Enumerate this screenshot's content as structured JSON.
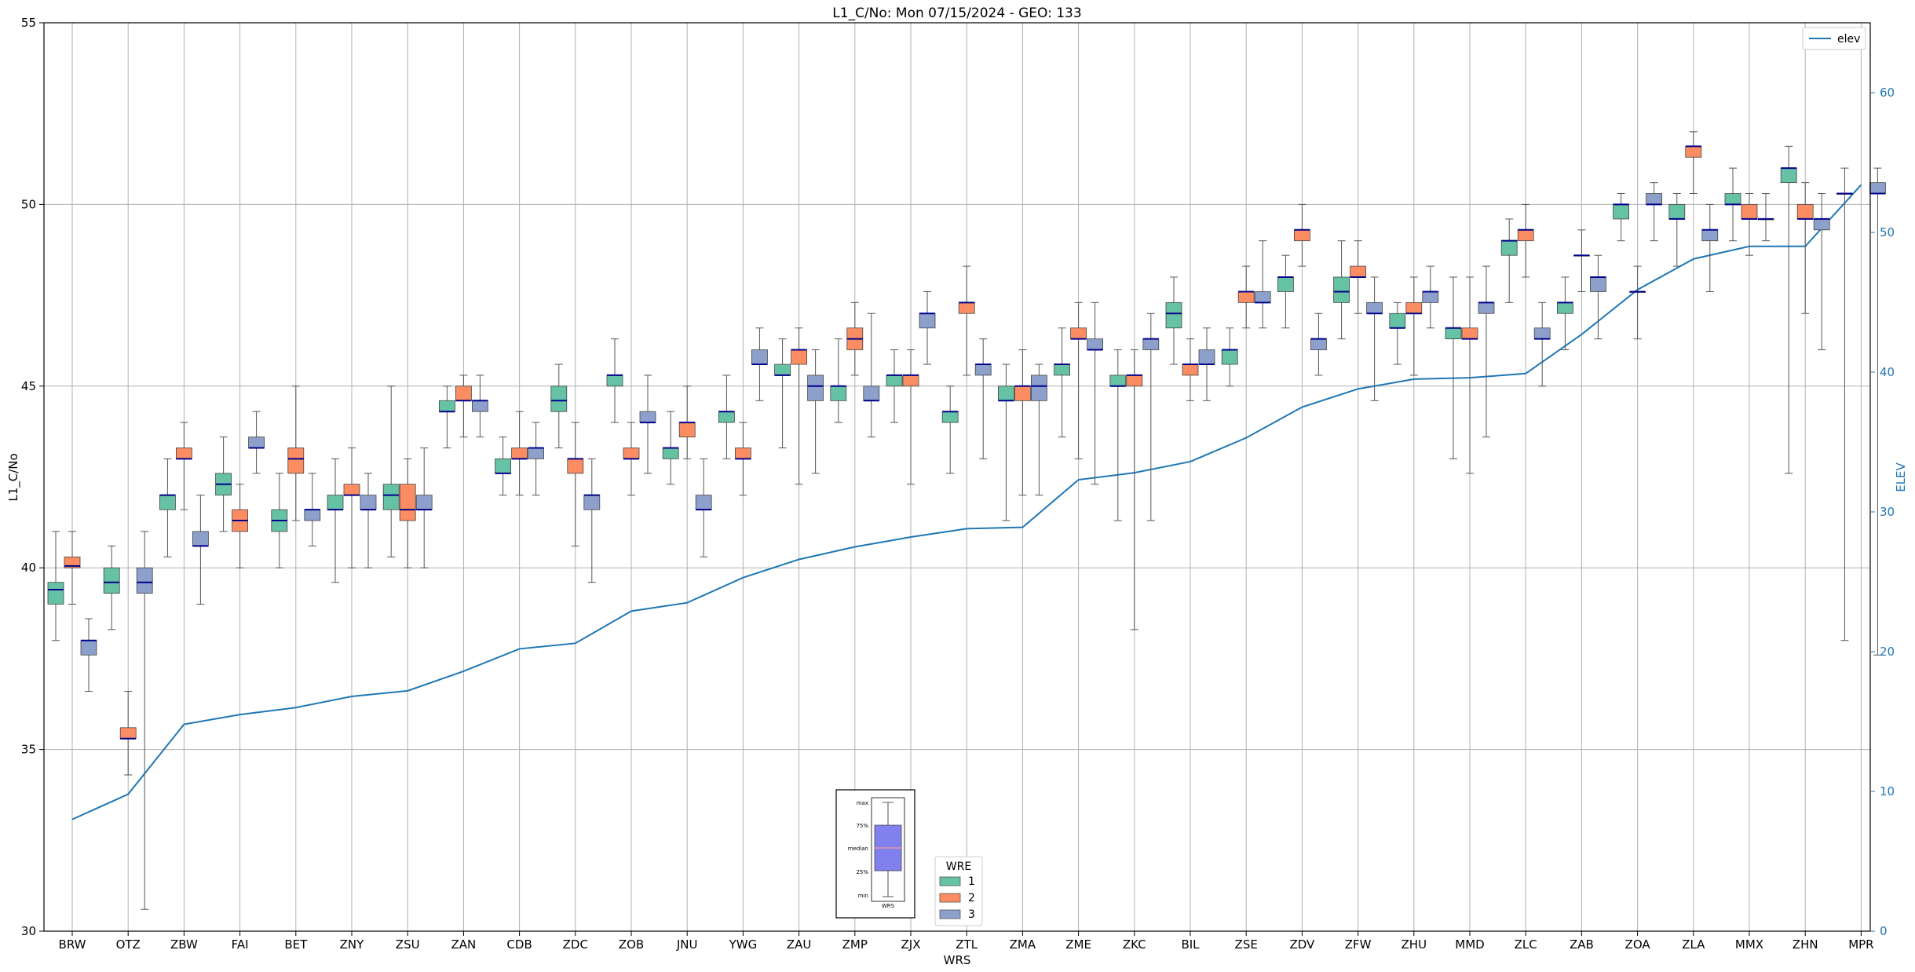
{
  "chart_data": {
    "type": "box",
    "title": "L1_C/No: Mon 07/15/2024 - GEO: 133",
    "xlabel": "WRS",
    "ylabel": "L1_C/No",
    "y2label": "ELEV",
    "ylim": [
      30,
      55
    ],
    "y2lim": [
      0,
      65
    ],
    "yticks": [
      30,
      35,
      40,
      45,
      50,
      55
    ],
    "y2ticks": [
      0,
      10,
      20,
      30,
      40,
      50,
      60
    ],
    "grid": true,
    "categories": [
      "BRW",
      "OTZ",
      "ZBW",
      "FAI",
      "BET",
      "ZNY",
      "ZSU",
      "ZAN",
      "CDB",
      "ZDC",
      "ZOB",
      "JNU",
      "YWG",
      "ZAU",
      "ZMP",
      "ZJX",
      "ZTL",
      "ZMA",
      "ZME",
      "ZKC",
      "BIL",
      "ZSE",
      "ZDV",
      "ZFW",
      "ZHU",
      "MMD",
      "ZLC",
      "ZAB",
      "ZOA",
      "ZLA",
      "MMX",
      "ZHN",
      "MPR"
    ],
    "wre_colors": {
      "1": "#66c2a5",
      "2": "#fc8d62",
      "3": "#8da0cb"
    },
    "median_color": "#00008b",
    "elev_color": "#1f77b4",
    "boxes": [
      {
        "cat": "BRW",
        "wre": 1,
        "min": 38.0,
        "q1": 39.0,
        "median": 39.4,
        "q3": 39.6,
        "max": 41.0
      },
      {
        "cat": "BRW",
        "wre": 2,
        "min": 39.0,
        "q1": 40.0,
        "median": 40.05,
        "q3": 40.3,
        "max": 41.0
      },
      {
        "cat": "BRW",
        "wre": 3,
        "min": 36.6,
        "q1": 37.6,
        "median": 38.0,
        "q3": 38.0,
        "max": 38.6
      },
      {
        "cat": "OTZ",
        "wre": 1,
        "min": 38.3,
        "q1": 39.3,
        "median": 39.6,
        "q3": 40.0,
        "max": 40.6
      },
      {
        "cat": "OTZ",
        "wre": 2,
        "min": 34.3,
        "q1": 35.3,
        "median": 35.3,
        "q3": 35.6,
        "max": 36.6
      },
      {
        "cat": "OTZ",
        "wre": 3,
        "min": 30.6,
        "q1": 39.3,
        "median": 39.6,
        "q3": 40.0,
        "max": 41.0
      },
      {
        "cat": "ZBW",
        "wre": 1,
        "min": 40.3,
        "q1": 41.6,
        "median": 42.0,
        "q3": 42.0,
        "max": 43.0
      },
      {
        "cat": "ZBW",
        "wre": 2,
        "min": 41.6,
        "q1": 43.0,
        "median": 43.0,
        "q3": 43.3,
        "max": 44.0
      },
      {
        "cat": "ZBW",
        "wre": 3,
        "min": 39.0,
        "q1": 40.6,
        "median": 40.6,
        "q3": 41.0,
        "max": 42.0
      },
      {
        "cat": "FAI",
        "wre": 1,
        "min": 41.0,
        "q1": 42.0,
        "median": 42.3,
        "q3": 42.6,
        "max": 43.6
      },
      {
        "cat": "FAI",
        "wre": 2,
        "min": 40.0,
        "q1": 41.0,
        "median": 41.3,
        "q3": 41.6,
        "max": 42.3
      },
      {
        "cat": "FAI",
        "wre": 3,
        "min": 42.6,
        "q1": 43.3,
        "median": 43.3,
        "q3": 43.6,
        "max": 44.3
      },
      {
        "cat": "BET",
        "wre": 1,
        "min": 40.0,
        "q1": 41.0,
        "median": 41.3,
        "q3": 41.6,
        "max": 42.6
      },
      {
        "cat": "BET",
        "wre": 2,
        "min": 41.3,
        "q1": 42.6,
        "median": 43.0,
        "q3": 43.3,
        "max": 45.0
      },
      {
        "cat": "BET",
        "wre": 3,
        "min": 40.6,
        "q1": 41.3,
        "median": 41.6,
        "q3": 41.6,
        "max": 42.6
      },
      {
        "cat": "ZNY",
        "wre": 1,
        "min": 39.6,
        "q1": 41.6,
        "median": 41.6,
        "q3": 42.0,
        "max": 43.0
      },
      {
        "cat": "ZNY",
        "wre": 2,
        "min": 40.0,
        "q1": 42.0,
        "median": 42.0,
        "q3": 42.3,
        "max": 43.3
      },
      {
        "cat": "ZNY",
        "wre": 3,
        "min": 40.0,
        "q1": 41.6,
        "median": 41.6,
        "q3": 42.0,
        "max": 42.6
      },
      {
        "cat": "ZSU",
        "wre": 1,
        "min": 40.3,
        "q1": 41.6,
        "median": 42.0,
        "q3": 42.3,
        "max": 45.0
      },
      {
        "cat": "ZSU",
        "wre": 2,
        "min": 40.0,
        "q1": 41.3,
        "median": 41.6,
        "q3": 42.3,
        "max": 43.0
      },
      {
        "cat": "ZSU",
        "wre": 3,
        "min": 40.0,
        "q1": 41.6,
        "median": 41.6,
        "q3": 42.0,
        "max": 43.3
      },
      {
        "cat": "ZAN",
        "wre": 1,
        "min": 43.3,
        "q1": 44.3,
        "median": 44.3,
        "q3": 44.6,
        "max": 45.0
      },
      {
        "cat": "ZAN",
        "wre": 2,
        "min": 43.6,
        "q1": 44.6,
        "median": 44.6,
        "q3": 45.0,
        "max": 45.3
      },
      {
        "cat": "ZAN",
        "wre": 3,
        "min": 43.6,
        "q1": 44.3,
        "median": 44.6,
        "q3": 44.6,
        "max": 45.3
      },
      {
        "cat": "CDB",
        "wre": 1,
        "min": 42.0,
        "q1": 42.6,
        "median": 42.6,
        "q3": 43.0,
        "max": 43.6
      },
      {
        "cat": "CDB",
        "wre": 2,
        "min": 42.0,
        "q1": 43.0,
        "median": 43.0,
        "q3": 43.3,
        "max": 44.3
      },
      {
        "cat": "CDB",
        "wre": 3,
        "min": 42.0,
        "q1": 43.0,
        "median": 43.3,
        "q3": 43.3,
        "max": 44.0
      },
      {
        "cat": "ZDC",
        "wre": 1,
        "min": 43.3,
        "q1": 44.3,
        "median": 44.6,
        "q3": 45.0,
        "max": 45.6
      },
      {
        "cat": "ZDC",
        "wre": 2,
        "min": 40.6,
        "q1": 42.6,
        "median": 43.0,
        "q3": 43.0,
        "max": 44.0
      },
      {
        "cat": "ZDC",
        "wre": 3,
        "min": 39.6,
        "q1": 41.6,
        "median": 42.0,
        "q3": 42.0,
        "max": 43.0
      },
      {
        "cat": "ZOB",
        "wre": 1,
        "min": 44.0,
        "q1": 45.0,
        "median": 45.3,
        "q3": 45.3,
        "max": 46.3
      },
      {
        "cat": "ZOB",
        "wre": 2,
        "min": 42.0,
        "q1": 43.0,
        "median": 43.0,
        "q3": 43.3,
        "max": 44.0
      },
      {
        "cat": "ZOB",
        "wre": 3,
        "min": 42.6,
        "q1": 44.0,
        "median": 44.0,
        "q3": 44.3,
        "max": 45.3
      },
      {
        "cat": "JNU",
        "wre": 1,
        "min": 42.3,
        "q1": 43.0,
        "median": 43.3,
        "q3": 43.3,
        "max": 44.3
      },
      {
        "cat": "JNU",
        "wre": 2,
        "min": 43.0,
        "q1": 43.6,
        "median": 44.0,
        "q3": 44.0,
        "max": 45.0
      },
      {
        "cat": "JNU",
        "wre": 3,
        "min": 40.3,
        "q1": 41.6,
        "median": 41.6,
        "q3": 42.0,
        "max": 43.0
      },
      {
        "cat": "YWG",
        "wre": 1,
        "min": 43.0,
        "q1": 44.0,
        "median": 44.3,
        "q3": 44.3,
        "max": 45.3
      },
      {
        "cat": "YWG",
        "wre": 2,
        "min": 42.0,
        "q1": 43.0,
        "median": 43.0,
        "q3": 43.3,
        "max": 44.0
      },
      {
        "cat": "YWG",
        "wre": 3,
        "min": 44.6,
        "q1": 45.6,
        "median": 45.6,
        "q3": 46.0,
        "max": 46.6
      },
      {
        "cat": "ZAU",
        "wre": 1,
        "min": 43.3,
        "q1": 45.3,
        "median": 45.3,
        "q3": 45.6,
        "max": 46.3
      },
      {
        "cat": "ZAU",
        "wre": 2,
        "min": 42.3,
        "q1": 45.6,
        "median": 46.0,
        "q3": 46.0,
        "max": 46.6
      },
      {
        "cat": "ZAU",
        "wre": 3,
        "min": 42.6,
        "q1": 44.6,
        "median": 45.0,
        "q3": 45.3,
        "max": 46.0
      },
      {
        "cat": "ZMP",
        "wre": 1,
        "min": 44.0,
        "q1": 44.6,
        "median": 45.0,
        "q3": 45.0,
        "max": 46.3
      },
      {
        "cat": "ZMP",
        "wre": 2,
        "min": 45.3,
        "q1": 46.0,
        "median": 46.3,
        "q3": 46.6,
        "max": 47.3
      },
      {
        "cat": "ZMP",
        "wre": 3,
        "min": 43.6,
        "q1": 44.6,
        "median": 44.6,
        "q3": 45.0,
        "max": 47.0
      },
      {
        "cat": "ZJX",
        "wre": 1,
        "min": 44.0,
        "q1": 45.0,
        "median": 45.3,
        "q3": 45.3,
        "max": 46.0
      },
      {
        "cat": "ZJX",
        "wre": 2,
        "min": 42.3,
        "q1": 45.0,
        "median": 45.3,
        "q3": 45.3,
        "max": 46.0
      },
      {
        "cat": "ZJX",
        "wre": 3,
        "min": 45.6,
        "q1": 46.6,
        "median": 47.0,
        "q3": 47.0,
        "max": 47.6
      },
      {
        "cat": "ZTL",
        "wre": 1,
        "min": 42.6,
        "q1": 44.0,
        "median": 44.3,
        "q3": 44.3,
        "max": 45.0
      },
      {
        "cat": "ZTL",
        "wre": 2,
        "min": 45.3,
        "q1": 47.0,
        "median": 47.3,
        "q3": 47.3,
        "max": 48.3
      },
      {
        "cat": "ZTL",
        "wre": 3,
        "min": 43.0,
        "q1": 45.3,
        "median": 45.6,
        "q3": 45.6,
        "max": 46.3
      },
      {
        "cat": "ZMA",
        "wre": 1,
        "min": 41.3,
        "q1": 44.6,
        "median": 44.6,
        "q3": 45.0,
        "max": 45.6
      },
      {
        "cat": "ZMA",
        "wre": 2,
        "min": 42.0,
        "q1": 44.6,
        "median": 45.0,
        "q3": 45.0,
        "max": 46.0
      },
      {
        "cat": "ZMA",
        "wre": 3,
        "min": 42.0,
        "q1": 44.6,
        "median": 45.0,
        "q3": 45.3,
        "max": 45.6
      },
      {
        "cat": "ZME",
        "wre": 1,
        "min": 43.6,
        "q1": 45.3,
        "median": 45.6,
        "q3": 45.6,
        "max": 46.6
      },
      {
        "cat": "ZME",
        "wre": 2,
        "min": 43.0,
        "q1": 46.3,
        "median": 46.3,
        "q3": 46.6,
        "max": 47.3
      },
      {
        "cat": "ZME",
        "wre": 3,
        "min": 42.3,
        "q1": 46.0,
        "median": 46.0,
        "q3": 46.3,
        "max": 47.3
      },
      {
        "cat": "ZKC",
        "wre": 1,
        "min": 41.3,
        "q1": 45.0,
        "median": 45.0,
        "q3": 45.3,
        "max": 46.0
      },
      {
        "cat": "ZKC",
        "wre": 2,
        "min": 38.3,
        "q1": 45.0,
        "median": 45.3,
        "q3": 45.3,
        "max": 46.0
      },
      {
        "cat": "ZKC",
        "wre": 3,
        "min": 41.3,
        "q1": 46.0,
        "median": 46.3,
        "q3": 46.3,
        "max": 47.0
      },
      {
        "cat": "BIL",
        "wre": 1,
        "min": 45.6,
        "q1": 46.6,
        "median": 47.0,
        "q3": 47.3,
        "max": 48.0
      },
      {
        "cat": "BIL",
        "wre": 2,
        "min": 44.6,
        "q1": 45.3,
        "median": 45.6,
        "q3": 45.6,
        "max": 46.3
      },
      {
        "cat": "BIL",
        "wre": 3,
        "min": 44.6,
        "q1": 45.6,
        "median": 45.6,
        "q3": 46.0,
        "max": 46.6
      },
      {
        "cat": "ZSE",
        "wre": 1,
        "min": 45.0,
        "q1": 45.6,
        "median": 46.0,
        "q3": 46.0,
        "max": 46.6
      },
      {
        "cat": "ZSE",
        "wre": 2,
        "min": 46.6,
        "q1": 47.3,
        "median": 47.6,
        "q3": 47.6,
        "max": 48.3
      },
      {
        "cat": "ZSE",
        "wre": 3,
        "min": 46.6,
        "q1": 47.3,
        "median": 47.3,
        "q3": 47.6,
        "max": 49.0
      },
      {
        "cat": "ZDV",
        "wre": 1,
        "min": 46.6,
        "q1": 47.6,
        "median": 48.0,
        "q3": 48.0,
        "max": 48.6
      },
      {
        "cat": "ZDV",
        "wre": 2,
        "min": 48.3,
        "q1": 49.0,
        "median": 49.3,
        "q3": 49.3,
        "max": 50.0
      },
      {
        "cat": "ZDV",
        "wre": 3,
        "min": 45.3,
        "q1": 46.0,
        "median": 46.3,
        "q3": 46.3,
        "max": 47.0
      },
      {
        "cat": "ZFW",
        "wre": 1,
        "min": 46.3,
        "q1": 47.3,
        "median": 47.6,
        "q3": 48.0,
        "max": 49.0
      },
      {
        "cat": "ZFW",
        "wre": 2,
        "min": 47.0,
        "q1": 48.0,
        "median": 48.0,
        "q3": 48.3,
        "max": 49.0
      },
      {
        "cat": "ZFW",
        "wre": 3,
        "min": 44.6,
        "q1": 47.0,
        "median": 47.0,
        "q3": 47.3,
        "max": 48.0
      },
      {
        "cat": "ZHU",
        "wre": 1,
        "min": 45.6,
        "q1": 46.6,
        "median": 46.6,
        "q3": 47.0,
        "max": 47.3
      },
      {
        "cat": "ZHU",
        "wre": 2,
        "min": 45.3,
        "q1": 47.0,
        "median": 47.0,
        "q3": 47.3,
        "max": 48.0
      },
      {
        "cat": "ZHU",
        "wre": 3,
        "min": 46.6,
        "q1": 47.3,
        "median": 47.6,
        "q3": 47.6,
        "max": 48.3
      },
      {
        "cat": "MMD",
        "wre": 1,
        "min": 43.0,
        "q1": 46.3,
        "median": 46.6,
        "q3": 46.6,
        "max": 48.0
      },
      {
        "cat": "MMD",
        "wre": 2,
        "min": 42.6,
        "q1": 46.3,
        "median": 46.3,
        "q3": 46.6,
        "max": 48.0
      },
      {
        "cat": "MMD",
        "wre": 3,
        "min": 43.6,
        "q1": 47.0,
        "median": 47.3,
        "q3": 47.3,
        "max": 48.3
      },
      {
        "cat": "ZLC",
        "wre": 1,
        "min": 47.3,
        "q1": 48.6,
        "median": 49.0,
        "q3": 49.0,
        "max": 49.6
      },
      {
        "cat": "ZLC",
        "wre": 2,
        "min": 48.0,
        "q1": 49.0,
        "median": 49.3,
        "q3": 49.3,
        "max": 50.0
      },
      {
        "cat": "ZLC",
        "wre": 3,
        "min": 45.0,
        "q1": 46.3,
        "median": 46.3,
        "q3": 46.6,
        "max": 47.3
      },
      {
        "cat": "ZAB",
        "wre": 1,
        "min": 46.0,
        "q1": 47.0,
        "median": 47.3,
        "q3": 47.3,
        "max": 48.0
      },
      {
        "cat": "ZAB",
        "wre": 2,
        "min": 47.6,
        "q1": 48.6,
        "median": 48.6,
        "q3": 48.6,
        "max": 49.3
      },
      {
        "cat": "ZAB",
        "wre": 3,
        "min": 46.3,
        "q1": 47.6,
        "median": 48.0,
        "q3": 48.0,
        "max": 48.6
      },
      {
        "cat": "ZOA",
        "wre": 1,
        "min": 49.0,
        "q1": 49.6,
        "median": 50.0,
        "q3": 50.0,
        "max": 50.3
      },
      {
        "cat": "ZOA",
        "wre": 2,
        "min": 46.3,
        "q1": 47.6,
        "median": 47.6,
        "q3": 47.6,
        "max": 48.3
      },
      {
        "cat": "ZOA",
        "wre": 3,
        "min": 49.0,
        "q1": 50.0,
        "median": 50.0,
        "q3": 50.3,
        "max": 50.6
      },
      {
        "cat": "ZLA",
        "wre": 1,
        "min": 48.3,
        "q1": 49.6,
        "median": 49.6,
        "q3": 50.0,
        "max": 50.3
      },
      {
        "cat": "ZLA",
        "wre": 2,
        "min": 50.3,
        "q1": 51.3,
        "median": 51.6,
        "q3": 51.6,
        "max": 52.0
      },
      {
        "cat": "ZLA",
        "wre": 3,
        "min": 47.6,
        "q1": 49.0,
        "median": 49.3,
        "q3": 49.3,
        "max": 50.0
      },
      {
        "cat": "MMX",
        "wre": 1,
        "min": 49.0,
        "q1": 50.0,
        "median": 50.0,
        "q3": 50.3,
        "max": 51.0
      },
      {
        "cat": "MMX",
        "wre": 2,
        "min": 48.6,
        "q1": 49.6,
        "median": 49.6,
        "q3": 50.0,
        "max": 50.3
      },
      {
        "cat": "MMX",
        "wre": 3,
        "min": 49.0,
        "q1": 49.6,
        "median": 49.6,
        "q3": 49.6,
        "max": 50.3
      },
      {
        "cat": "ZHN",
        "wre": 1,
        "min": 42.6,
        "q1": 50.6,
        "median": 51.0,
        "q3": 51.0,
        "max": 51.6
      },
      {
        "cat": "ZHN",
        "wre": 2,
        "min": 47.0,
        "q1": 49.6,
        "median": 49.6,
        "q3": 50.0,
        "max": 50.6
      },
      {
        "cat": "ZHN",
        "wre": 3,
        "min": 46.0,
        "q1": 49.3,
        "median": 49.6,
        "q3": 49.6,
        "max": 50.3
      },
      {
        "cat": "MPR",
        "wre": 1,
        "min": 38.0,
        "q1": 50.3,
        "median": 50.3,
        "q3": 50.3,
        "max": 51.0
      },
      {
        "cat": "MPR",
        "wre": 3,
        "min": 37.6,
        "q1": 50.3,
        "median": 50.3,
        "q3": 50.6,
        "max": 51.0
      }
    ],
    "elev_series": {
      "name": "elev",
      "values": [
        8,
        9.8,
        14.8,
        15.5,
        16,
        16.8,
        17.2,
        18.6,
        20.2,
        20.6,
        22.9,
        23.5,
        25.3,
        26.6,
        27.5,
        28.2,
        28.8,
        28.9,
        32.3,
        32.8,
        33.6,
        35.3,
        37.5,
        38.8,
        39.5,
        39.6,
        39.9,
        42.7,
        45.9,
        48.1,
        49.0,
        49.0,
        53.4
      ]
    },
    "legend_wre": {
      "title": "WRE",
      "entries": [
        "1",
        "2",
        "3"
      ]
    },
    "legend_elev": {
      "entries": [
        "elev"
      ]
    },
    "inset_labels": [
      "max",
      "75%",
      "median",
      "25%",
      "min",
      "WRS"
    ]
  }
}
